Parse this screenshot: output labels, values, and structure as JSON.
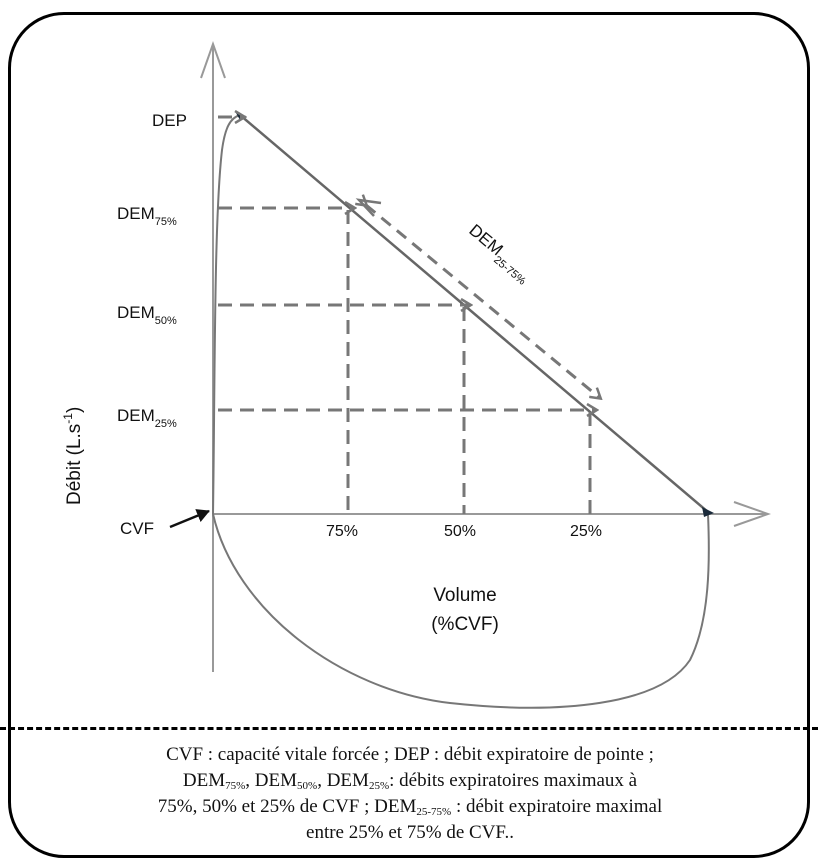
{
  "labels": {
    "dep": "DEP",
    "dem": "DEM",
    "sub75": "75%",
    "sub50": "50%",
    "sub25": "25%",
    "sub2575": "25-75%",
    "cvf": "CVF",
    "yaxis": "Débit (L.s",
    "yaxis_sup": "-1",
    "yaxis_close": ")",
    "xaxis_line1": "Volume",
    "xaxis_line2": "(%CVF)",
    "tick75": "75%",
    "tick50": "50%",
    "tick25": "25%"
  },
  "caption": {
    "t1": "CVF : capacité vitale forcée ; DEP : débit expiratoire de pointe ;",
    "t2a": "DEM",
    "s75": "75%",
    "t2b": ", DEM",
    "s50": "50%",
    "t2c": ", DEM",
    "s25": "25%",
    "t2d": ": débits expiratoires maximaux à",
    "t3a": "75%, 50% et 25% de CVF ; DEM",
    "s2575": "25-75%",
    "t3b": " : débit expiratoire maximal",
    "t4": "entre 25% et 75% de CVF.."
  }
}
